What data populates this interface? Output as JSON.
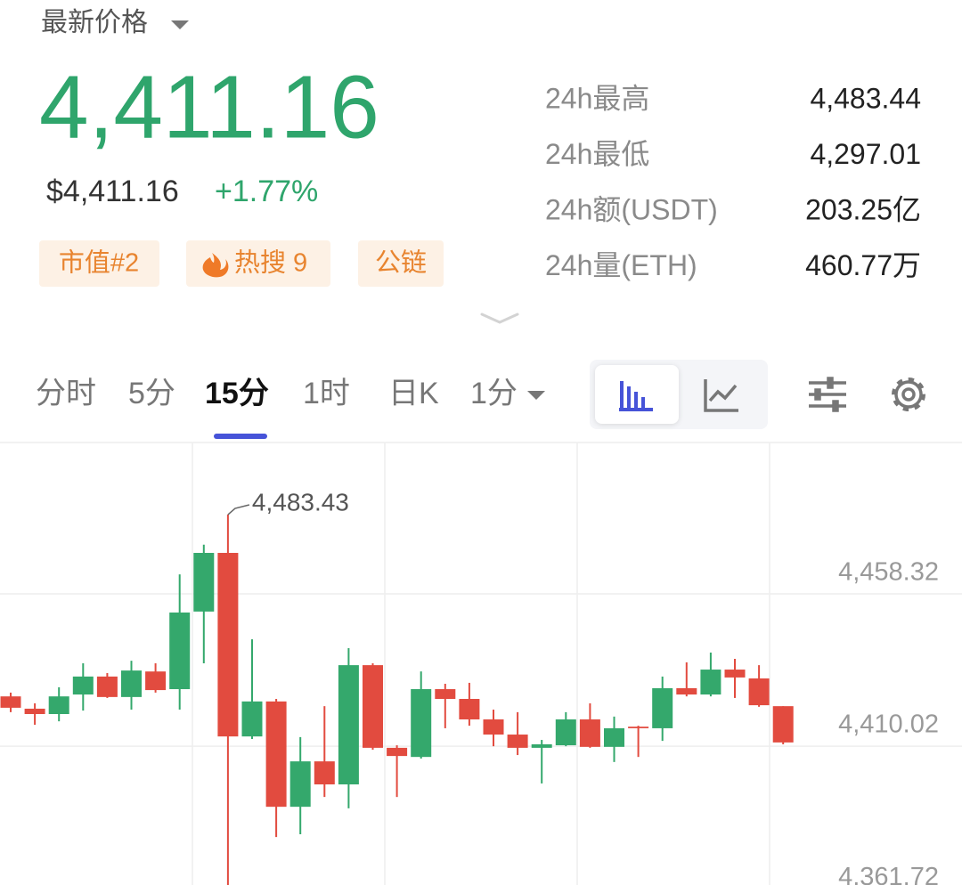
{
  "header": {
    "title": "最新价格"
  },
  "price": {
    "last": "4,411.16",
    "usd": "$4,411.16",
    "change": "+1.77%"
  },
  "tags": [
    "市值#2",
    "热搜 9",
    "公链"
  ],
  "stats": [
    {
      "label": "24h最高",
      "value": "4,483.44"
    },
    {
      "label": "24h最低",
      "value": "4,297.01"
    },
    {
      "label": "24h额(USDT)",
      "value": "203.25亿"
    },
    {
      "label": "24h量(ETH)",
      "value": "460.77万"
    }
  ],
  "tabs": [
    "分时",
    "5分",
    "15分",
    "1时",
    "日K",
    "1分"
  ],
  "chart_data": {
    "type": "candlestick",
    "up_color": "#34a86c",
    "down_color": "#e24b3f",
    "ylim": [
      4366.0,
      4506.3
    ],
    "yticks": [
      {
        "value": 4458.32,
        "label": "4,458.32"
      },
      {
        "value": 4410.02,
        "label": "4,410.02"
      },
      {
        "value": 4361.72,
        "label": "4,361.72"
      }
    ],
    "grid": true,
    "high_label": {
      "index": 9,
      "label": "4,483.43"
    },
    "open": [
      4425.8,
      4421.9,
      4420.2,
      4426.4,
      4432.1,
      4425.6,
      4433.7,
      4428.1,
      4452.7,
      4471.3,
      4413.1,
      4424.2,
      4390.8,
      4405.2,
      4397.9,
      4435.7,
      4409.5,
      4406.6,
      4428.1,
      4425.0,
      4418.5,
      4413.7,
      4409.5,
      4410.3,
      4418.5,
      4409.8,
      4416.2,
      4415.7,
      4428.4,
      4426.4,
      4434.3,
      4431.5,
      4422.7
    ],
    "high": [
      4427.0,
      4423.6,
      4428.7,
      4436.3,
      4433.2,
      4437.1,
      4436.3,
      4464.5,
      4473.9,
      4483.43,
      4443.9,
      4425.0,
      4412.9,
      4422.7,
      4441.1,
      4436.3,
      4410.3,
      4433.7,
      4429.8,
      4430.1,
      4421.6,
      4420.8,
      4412.0,
      4420.8,
      4423.6,
      4419.4,
      4416.5,
      4432.1,
      4436.6,
      4439.7,
      4437.7,
      4435.7,
      4422.7
    ],
    "low": [
      4420.8,
      4416.8,
      4417.9,
      4421.3,
      4425.3,
      4421.6,
      4427.0,
      4421.6,
      4436.3,
      4360.0,
      4412.3,
      4381.2,
      4382.1,
      4393.9,
      4390.3,
      4408.9,
      4393.9,
      4406.1,
      4415.7,
      4416.5,
      4410.0,
      4407.2,
      4398.2,
      4410.0,
      4409.5,
      4405.0,
      4406.6,
      4411.7,
      4425.8,
      4425.8,
      4425.3,
      4422.5,
      4410.6
    ],
    "close": [
      4422.2,
      4420.2,
      4425.8,
      4432.1,
      4425.6,
      4434.0,
      4427.8,
      4452.4,
      4471.3,
      4413.1,
      4424.2,
      4390.8,
      4405.2,
      4397.9,
      4435.7,
      4409.5,
      4406.9,
      4428.1,
      4425.0,
      4418.5,
      4413.7,
      4409.5,
      4410.6,
      4418.5,
      4409.8,
      4415.7,
      4415.7,
      4428.4,
      4426.4,
      4434.3,
      4431.8,
      4423.0,
      4411.2
    ]
  }
}
